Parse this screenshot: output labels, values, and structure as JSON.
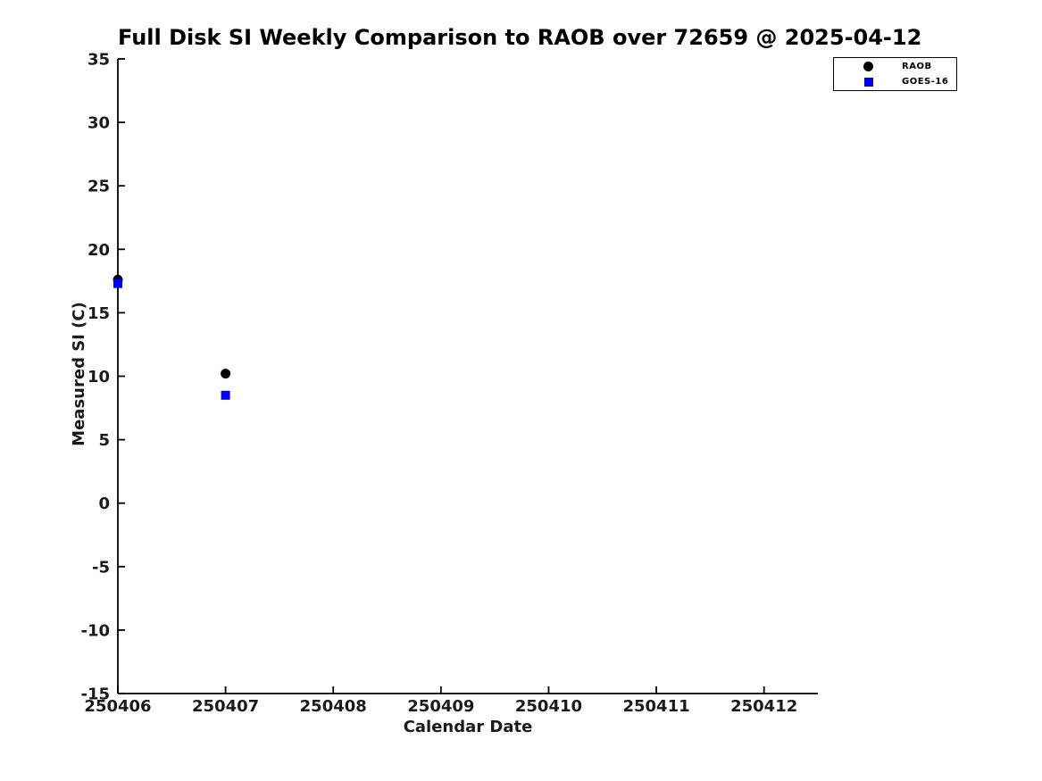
{
  "chart_data": {
    "type": "scatter",
    "title": "Full Disk SI Weekly Comparison to RAOB over 72659 @ 2025-04-12",
    "xlabel": "Calendar Date",
    "ylabel": "Measured SI (C)",
    "xlim": [
      250406,
      250412.5
    ],
    "ylim": [
      -15,
      35
    ],
    "x_ticks": [
      250406,
      250407,
      250408,
      250409,
      250410,
      250411,
      250412
    ],
    "y_ticks": [
      -15,
      -10,
      -5,
      0,
      5,
      10,
      15,
      20,
      25,
      30,
      35
    ],
    "grid": false,
    "legend_position": "top-right-outside",
    "axis_color": "#000000",
    "tick_label_color": "#1a1a1a",
    "background_color": "#ffffff",
    "series": [
      {
        "name": "RAOB",
        "marker": "circle",
        "color": "#000000",
        "points": [
          [
            250406,
            17.6
          ],
          [
            250407,
            10.2
          ]
        ]
      },
      {
        "name": "GOES-16",
        "marker": "square",
        "color": "#0000ff",
        "points": [
          [
            250406,
            17.3
          ],
          [
            250407,
            8.5
          ]
        ]
      }
    ]
  }
}
